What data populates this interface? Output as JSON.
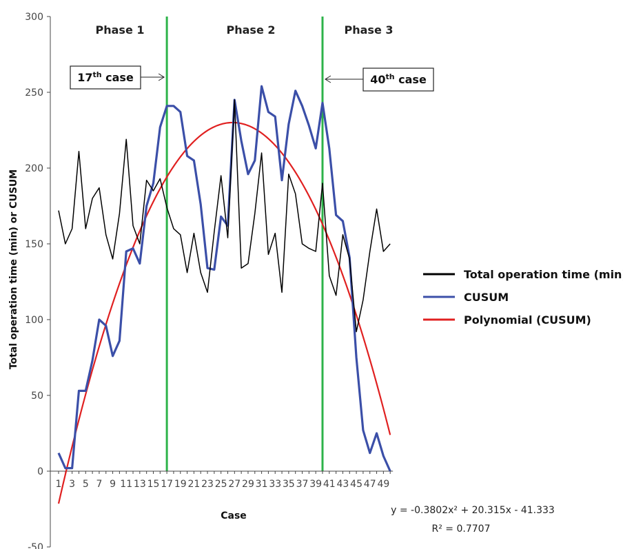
{
  "chart_data": {
    "type": "line",
    "title": "",
    "xlabel": "Case",
    "ylabel": "Total operation time (min) or CUSUM",
    "ylim": [
      -50,
      300
    ],
    "yticks": [
      -50,
      0,
      50,
      100,
      150,
      200,
      250,
      300
    ],
    "x": [
      1,
      2,
      3,
      4,
      5,
      6,
      7,
      8,
      9,
      10,
      11,
      12,
      13,
      14,
      15,
      16,
      17,
      18,
      19,
      20,
      21,
      22,
      23,
      24,
      25,
      26,
      27,
      28,
      29,
      30,
      31,
      32,
      33,
      34,
      35,
      36,
      37,
      38,
      39,
      40,
      41,
      42,
      43,
      44,
      45,
      46,
      47,
      48,
      49,
      50
    ],
    "xtick_labels": [
      "1",
      "3",
      "5",
      "7",
      "9",
      "11",
      "13",
      "15",
      "17",
      "19",
      "21",
      "23",
      "25",
      "27",
      "29",
      "31",
      "33",
      "35",
      "37",
      "39",
      "41",
      "43",
      "45",
      "47",
      "49"
    ],
    "series": [
      {
        "name": "Total operation time (min)",
        "color": "#000000",
        "values": [
          172,
          150,
          160,
          211,
          160,
          180,
          187,
          156,
          140,
          170,
          219,
          162,
          150,
          192,
          185,
          193,
          174,
          160,
          156,
          131,
          157,
          131,
          118,
          158,
          195,
          154,
          245,
          134,
          137,
          170,
          210,
          143,
          157,
          118,
          196,
          183,
          150,
          147,
          145,
          190,
          129,
          116,
          156,
          140,
          92,
          113,
          145,
          173,
          145,
          150
        ]
      },
      {
        "name": "CUSUM",
        "color": "#3b4fa8",
        "values": [
          12,
          2,
          2,
          53,
          53,
          73,
          100,
          96,
          76,
          86,
          145,
          147,
          137,
          175,
          190,
          227,
          241,
          241,
          237,
          208,
          205,
          176,
          134,
          133,
          168,
          162,
          245,
          218,
          196,
          205,
          254,
          237,
          234,
          192,
          229,
          251,
          241,
          228,
          213,
          243,
          213,
          169,
          165,
          141,
          75,
          27,
          12,
          25,
          10,
          0
        ]
      },
      {
        "name": "Polynomial (CUSUM)",
        "color": "#e02020",
        "trendline": true,
        "equation": "y = -0.3802x² + 20.315x - 41.333",
        "coefficients": {
          "a": -0.3802,
          "b": 20.315,
          "c": -41.333
        },
        "r_squared": "R² = 0.7707"
      }
    ],
    "vertical_lines": {
      "color": "#2db34a",
      "cases": [
        17,
        40
      ]
    },
    "phases": [
      "Phase 1",
      "Phase 2",
      "Phase 3"
    ],
    "callouts": [
      {
        "base": "17",
        "sup": "th",
        "rest": " case",
        "case": 17,
        "y": 251
      },
      {
        "base": "40",
        "sup": "th",
        "rest": " case",
        "case": 40,
        "y": 251
      }
    ],
    "legend_position": "right",
    "grid": false
  }
}
